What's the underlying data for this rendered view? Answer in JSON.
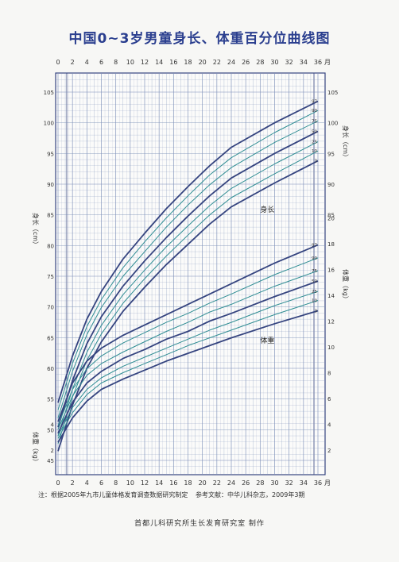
{
  "chart_data": {
    "type": "line",
    "title": "中国0~3岁男童身长、体重百分位曲线图",
    "x_unit": "月",
    "x_ticks": [
      0,
      2,
      4,
      6,
      8,
      10,
      12,
      14,
      16,
      18,
      20,
      22,
      24,
      26,
      28,
      30,
      32,
      34,
      36
    ],
    "xlim": [
      0,
      36
    ],
    "percentiles": [
      "97",
      "90",
      "75",
      "50",
      "25",
      "10",
      "3"
    ],
    "length": {
      "label": "身长",
      "axis_label": "身长（cm）",
      "ylim": [
        44,
        107
      ],
      "ticks": [
        45,
        50,
        55,
        60,
        65,
        70,
        75,
        80,
        85,
        90,
        95,
        100,
        105
      ],
      "x": [
        0,
        2,
        4,
        6,
        9,
        12,
        15,
        18,
        21,
        24,
        30,
        36
      ],
      "series": [
        {
          "name": "97",
          "values": [
            54.4,
            62.0,
            68.0,
            72.5,
            77.8,
            82.0,
            86.0,
            89.6,
            93.0,
            96.0,
            100.0,
            103.5
          ]
        },
        {
          "name": "90",
          "values": [
            53.2,
            60.8,
            66.8,
            71.2,
            76.4,
            80.6,
            84.5,
            88.1,
            91.5,
            94.3,
            98.4,
            102.0
          ]
        },
        {
          "name": "75",
          "values": [
            51.9,
            59.5,
            65.5,
            69.9,
            75.0,
            79.0,
            83.0,
            86.6,
            89.9,
            92.7,
            96.8,
            100.3
          ]
        },
        {
          "name": "50",
          "values": [
            50.4,
            58.0,
            64.0,
            68.4,
            73.4,
            77.5,
            81.3,
            84.8,
            88.1,
            91.0,
            95.0,
            98.6
          ]
        },
        {
          "name": "25",
          "values": [
            49.0,
            56.6,
            62.6,
            67.0,
            72.0,
            76.0,
            79.8,
            83.2,
            86.5,
            89.3,
            93.3,
            96.9
          ]
        },
        {
          "name": "10",
          "values": [
            47.7,
            55.3,
            61.3,
            65.6,
            70.6,
            74.6,
            78.3,
            81.7,
            85.0,
            87.8,
            91.7,
            95.4
          ]
        },
        {
          "name": "3",
          "values": [
            46.5,
            54.0,
            60.0,
            64.3,
            69.3,
            73.2,
            76.9,
            80.2,
            83.5,
            86.3,
            90.2,
            93.8
          ]
        }
      ]
    },
    "weight": {
      "label": "体重",
      "axis_label": "体重（kg）",
      "ylim": [
        0,
        22
      ],
      "ticks": [
        2,
        4,
        6,
        8,
        10,
        12,
        14,
        16,
        18,
        20
      ],
      "x": [
        0,
        2,
        4,
        6,
        9,
        12,
        15,
        18,
        21,
        24,
        30,
        36
      ],
      "series": [
        {
          "name": "97",
          "values": [
            4.2,
            7.2,
            8.9,
            9.9,
            10.9,
            11.7,
            12.5,
            13.3,
            14.1,
            14.9,
            16.5,
            17.9
          ]
        },
        {
          "name": "90",
          "values": [
            3.9,
            6.7,
            8.3,
            9.3,
            10.3,
            11.1,
            11.9,
            12.6,
            13.4,
            14.1,
            15.6,
            16.9
          ]
        },
        {
          "name": "75",
          "values": [
            3.6,
            6.2,
            7.8,
            8.7,
            9.6,
            10.4,
            11.2,
            11.9,
            12.7,
            13.3,
            14.7,
            15.9
          ]
        },
        {
          "name": "50",
          "values": [
            3.3,
            5.7,
            7.2,
            8.1,
            9.1,
            9.8,
            10.6,
            11.2,
            12.0,
            12.6,
            13.9,
            15.1
          ]
        },
        {
          "name": "25",
          "values": [
            3.1,
            5.3,
            6.7,
            7.6,
            8.5,
            9.2,
            9.9,
            10.6,
            11.3,
            11.9,
            13.2,
            14.3
          ]
        },
        {
          "name": "10",
          "values": [
            2.9,
            4.9,
            6.3,
            7.2,
            8.0,
            8.7,
            9.4,
            10.1,
            10.7,
            11.3,
            12.5,
            13.6
          ]
        },
        {
          "name": "3",
          "values": [
            2.6,
            4.5,
            5.8,
            6.7,
            7.5,
            8.2,
            8.9,
            9.5,
            10.1,
            10.7,
            11.8,
            12.8
          ]
        }
      ]
    }
  },
  "notes": {
    "left": "注：根据2005年九市儿童体格发育调查数据研究制定",
    "right": "参考文献：中华儿科杂志，2009年3期",
    "credit": "首都儿科研究所生长发育研究室  制作"
  },
  "colors": {
    "major": "#35447f",
    "minor": "#2f8d93",
    "grid": "#7c8fb8",
    "bg": "#f7f7f5"
  }
}
